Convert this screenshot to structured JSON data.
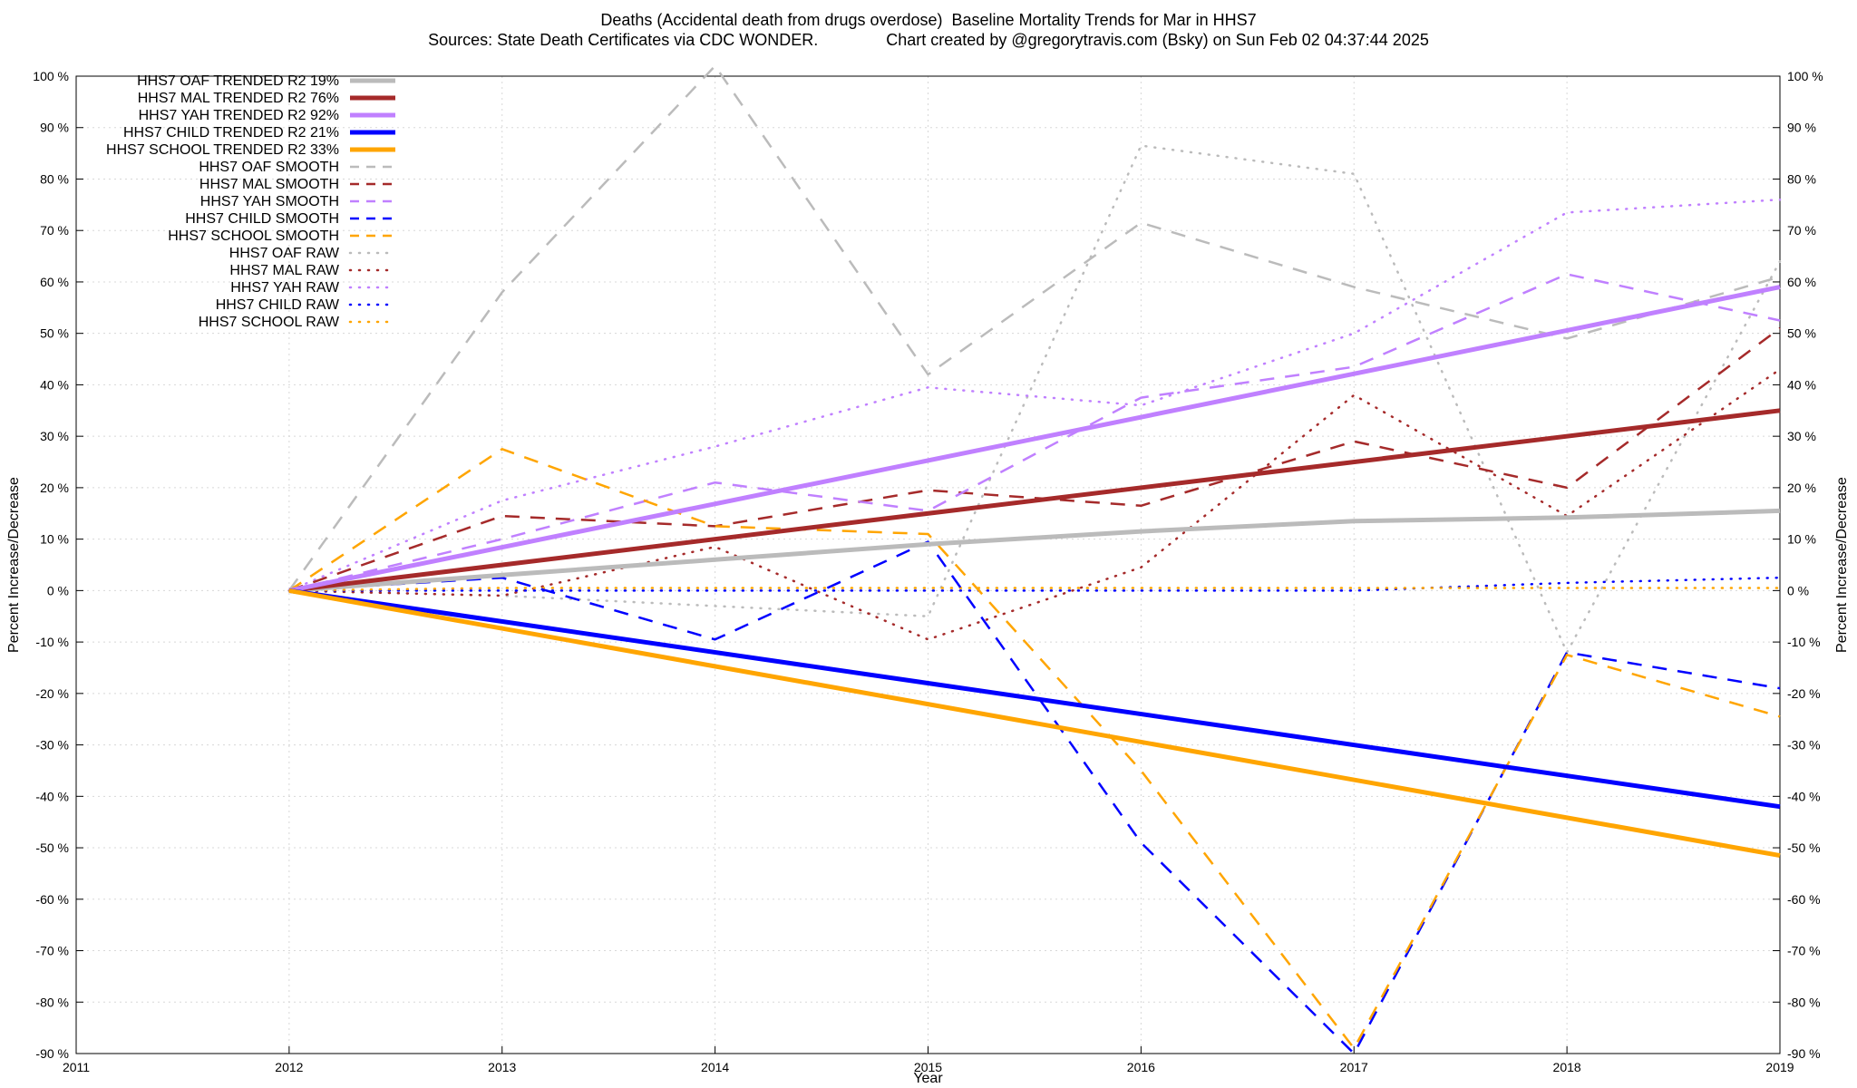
{
  "chart_data": {
    "type": "line",
    "title": "Deaths (Accidental death from drugs overdose)  Baseline Mortality Trends for Mar in HHS7",
    "subtitle": "Sources: State Death Certificates via CDC WONDER.               Chart created by @gregorytravis.com (Bsky) on Sun Feb 02 04:37:44 2025",
    "xlabel": "Year",
    "ylabel": "Percent Increase/Decrease",
    "y2label": "Percent Increase/Decrease",
    "xlim": [
      2011,
      2019
    ],
    "ylim": [
      -90,
      100
    ],
    "x_ticks": [
      2011,
      2012,
      2013,
      2014,
      2015,
      2016,
      2017,
      2018,
      2019
    ],
    "y_ticks": [
      -90,
      -80,
      -70,
      -60,
      -50,
      -40,
      -30,
      -20,
      -10,
      0,
      10,
      20,
      30,
      40,
      50,
      60,
      70,
      80,
      90,
      100
    ],
    "tick_suffix": " %",
    "grid": true,
    "legend_position": "top-left",
    "series": [
      {
        "name": "HHS7 OAF TRENDED R2  19%",
        "style": "solid",
        "color": "#bbbbbb",
        "x": [
          2012,
          2013,
          2014,
          2015,
          2016,
          2017,
          2018,
          2019
        ],
        "values": [
          0,
          3,
          6,
          9,
          11.5,
          13.5,
          14.2,
          15.5
        ]
      },
      {
        "name": "HHS7 MAL TRENDED R2  76%",
        "style": "solid",
        "color": "#a52a2a",
        "x": [
          2012,
          2019
        ],
        "values": [
          0,
          35
        ]
      },
      {
        "name": "HHS7 YAH TRENDED R2  92%",
        "style": "solid",
        "color": "#c080ff",
        "x": [
          2012,
          2019
        ],
        "values": [
          0,
          59
        ]
      },
      {
        "name": "HHS7 CHILD TRENDED R2  21%",
        "style": "solid",
        "color": "#0000ff",
        "x": [
          2012,
          2019
        ],
        "values": [
          0,
          -42
        ]
      },
      {
        "name": "HHS7 SCHOOL TRENDED R2  33%",
        "style": "solid",
        "color": "#ffa500",
        "x": [
          2012,
          2019
        ],
        "values": [
          0,
          -51.5
        ]
      },
      {
        "name": "HHS7 OAF SMOOTH",
        "style": "dash",
        "color": "#bbbbbb",
        "x": [
          2012,
          2013,
          2014,
          2015,
          2016,
          2017,
          2018,
          2019
        ],
        "values": [
          0,
          58,
          102,
          42,
          71.5,
          59,
          49,
          61
        ]
      },
      {
        "name": "HHS7 MAL SMOOTH",
        "style": "dash",
        "color": "#a52a2a",
        "x": [
          2012,
          2013,
          2014,
          2015,
          2016,
          2017,
          2018,
          2019
        ],
        "values": [
          0,
          14.5,
          12.5,
          19.5,
          16.5,
          29,
          20,
          51
        ]
      },
      {
        "name": "HHS7 YAH SMOOTH",
        "style": "dash",
        "color": "#c080ff",
        "x": [
          2012,
          2013,
          2014,
          2015,
          2016,
          2017,
          2018,
          2019
        ],
        "values": [
          0,
          10,
          21,
          15.5,
          37.5,
          43.5,
          61.5,
          52.5
        ]
      },
      {
        "name": "HHS7 CHILD SMOOTH",
        "style": "dash",
        "color": "#0000ff",
        "x": [
          2012,
          2013,
          2014,
          2015,
          2016,
          2017,
          2018,
          2019
        ],
        "values": [
          0,
          2.5,
          -9.5,
          9.5,
          -49,
          -90,
          -12,
          -19
        ]
      },
      {
        "name": "HHS7 SCHOOL SMOOTH",
        "style": "dash",
        "color": "#ffa500",
        "x": [
          2012,
          2013,
          2014,
          2015,
          2016,
          2017,
          2018,
          2019
        ],
        "values": [
          0,
          27.5,
          12.5,
          11,
          -35,
          -89,
          -12.5,
          -24.5
        ]
      },
      {
        "name": "HHS7 OAF RAW",
        "style": "dot",
        "color": "#bbbbbb",
        "x": [
          2012,
          2013,
          2014,
          2015,
          2016,
          2017,
          2018,
          2019
        ],
        "values": [
          0,
          -1,
          -3,
          -5,
          86.5,
          81,
          -12,
          64
        ]
      },
      {
        "name": "HHS7 MAL RAW",
        "style": "dot",
        "color": "#a52a2a",
        "x": [
          2012,
          2013,
          2014,
          2015,
          2016,
          2017,
          2018,
          2019
        ],
        "values": [
          0,
          -1,
          8.5,
          -9.5,
          4.5,
          38,
          14.5,
          43
        ]
      },
      {
        "name": "HHS7 YAH RAW",
        "style": "dot",
        "color": "#c080ff",
        "x": [
          2012,
          2013,
          2014,
          2015,
          2016,
          2017,
          2018,
          2019
        ],
        "values": [
          0,
          17.5,
          28,
          39.5,
          36,
          50,
          73.5,
          76
        ]
      },
      {
        "name": "HHS7 CHILD RAW",
        "style": "dot",
        "color": "#0000ff",
        "x": [
          2012,
          2013,
          2014,
          2015,
          2016,
          2017,
          2018,
          2019
        ],
        "values": [
          0,
          0,
          0,
          0,
          0,
          0,
          1.5,
          2.5
        ]
      },
      {
        "name": "HHS7 SCHOOL RAW",
        "style": "dot",
        "color": "#ffa500",
        "x": [
          2012,
          2013,
          2014,
          2015,
          2016,
          2017,
          2018,
          2019
        ],
        "values": [
          0,
          0.5,
          0.5,
          0.5,
          0.5,
          0.5,
          0.5,
          0.5
        ]
      }
    ]
  }
}
